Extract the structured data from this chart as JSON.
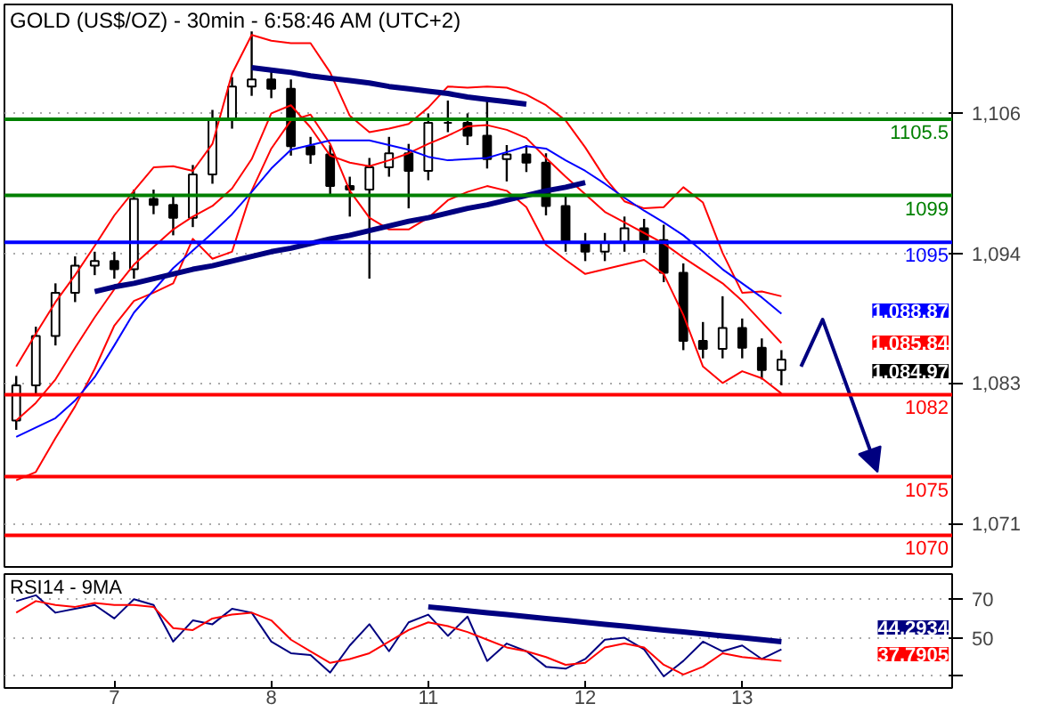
{
  "chart_data": [
    {
      "type": "candlestick",
      "title": "GOLD (US$/OZ) - 30min - 6:58:46 AM (UTC+2)",
      "categories": [
        null,
        null,
        null,
        null,
        null,
        null,
        null,
        null,
        null,
        null,
        null,
        null,
        null,
        null,
        null,
        null,
        null,
        null,
        null,
        null,
        null,
        null,
        null,
        null,
        null,
        null,
        null,
        null,
        null,
        null,
        null,
        null,
        null,
        null,
        null,
        null,
        null,
        null,
        null,
        null
      ],
      "ohlc": [
        [
          1079.8,
          1083.6,
          1079.0,
          1082.8
        ],
        [
          1082.8,
          1087.8,
          1082.0,
          1087.0
        ],
        [
          1087.0,
          1091.5,
          1086.2,
          1090.7
        ],
        [
          1090.7,
          1093.8,
          1089.9,
          1093.0
        ],
        [
          1093.0,
          1094.2,
          1092.2,
          1093.4
        ],
        [
          1093.4,
          1094.2,
          1091.9,
          1092.7
        ],
        [
          1092.7,
          1099.5,
          1091.9,
          1098.7
        ],
        [
          1098.7,
          1099.5,
          1097.4,
          1098.2
        ],
        [
          1098.2,
          1099.0,
          1095.6,
          1097.1
        ],
        [
          1097.1,
          1101.6,
          1096.3,
          1100.8
        ],
        [
          1100.8,
          1106.3,
          1100.0,
          1105.5
        ],
        [
          1105.5,
          1109.1,
          1104.7,
          1108.3
        ],
        [
          1108.3,
          1113.0,
          1107.5,
          1108.9
        ],
        [
          1108.9,
          1109.7,
          1107.3,
          1108.1
        ],
        [
          1108.1,
          1108.9,
          1102.4,
          1103.2
        ],
        [
          1103.2,
          1104.0,
          1101.7,
          1102.5
        ],
        [
          1102.5,
          1103.3,
          1099.0,
          1099.8
        ],
        [
          1099.8,
          1100.6,
          1097.2,
          1099.5
        ],
        [
          1099.5,
          1102.2,
          1091.9,
          1101.4
        ],
        [
          1101.4,
          1104.0,
          1100.6,
          1102.6
        ],
        [
          1102.6,
          1103.4,
          1097.9,
          1101.1
        ],
        [
          1101.1,
          1106.0,
          1100.3,
          1105.2
        ],
        [
          1105.2,
          1107.1,
          1104.4,
          1105.2
        ],
        [
          1105.2,
          1106.0,
          1103.3,
          1104.1
        ],
        [
          1104.1,
          1107.1,
          1101.3,
          1102.1
        ],
        [
          1102.1,
          1103.3,
          1100.2,
          1102.5
        ],
        [
          1102.5,
          1103.3,
          1101.0,
          1101.8
        ],
        [
          1101.8,
          1102.6,
          1097.3,
          1098.1
        ],
        [
          1098.1,
          1098.9,
          1094.2,
          1095.0
        ],
        [
          1095.0,
          1095.8,
          1093.4,
          1094.2
        ],
        [
          1094.2,
          1095.8,
          1093.4,
          1095.0
        ],
        [
          1095.0,
          1097.2,
          1094.2,
          1096.2
        ],
        [
          1096.2,
          1097.0,
          1094.1,
          1095.2
        ],
        [
          1095.2,
          1096.5,
          1091.6,
          1092.4
        ],
        [
          1092.4,
          1093.2,
          1085.8,
          1086.6
        ],
        [
          1086.6,
          1088.2,
          1085.1,
          1085.9
        ],
        [
          1085.9,
          1090.4,
          1085.1,
          1087.7
        ],
        [
          1087.7,
          1088.5,
          1085.1,
          1086.0
        ],
        [
          1086.0,
          1086.8,
          1083.3,
          1084.1
        ],
        [
          1084.1,
          1085.8,
          1082.8,
          1085.0
        ]
      ],
      "series": [
        {
          "type": "line",
          "color": "#ff0000",
          "values": [
            1084.4,
            1087.2,
            1089.9,
            1092.2,
            1094.7,
            1097.3,
            1099.4,
            1101.4,
            1101.5,
            1101.1,
            1103.4,
            1109.4,
            1112.7,
            1112.2,
            1112.0,
            1112.0,
            1109.5,
            1105.8,
            1104.4,
            1104.7,
            1105.1,
            1106.5,
            1108.3,
            1108.2,
            1108.3,
            1108.2,
            1107.6,
            1106.7,
            1105.4,
            1103.1,
            1100.5,
            1098.5,
            1097.9,
            1098.0,
            1099.7,
            1098.4,
            1094.1,
            1090.7,
            1090.8,
            1090.4
          ]
        },
        {
          "type": "line",
          "color": "#ff0000",
          "values": [
            1074.7,
            1075.4,
            1078.3,
            1081.0,
            1084.2,
            1087.9,
            1090.0,
            1090.7,
            1091.5,
            1095.3,
            1093.6,
            1094.2,
            1099.4,
            1103.0,
            1105.4,
            1105.9,
            1103.4,
            1099.4,
            1097.1,
            1096.1,
            1096.1,
            1097.1,
            1098.6,
            1099.3,
            1099.8,
            1099.4,
            1098.0,
            1094.8,
            1093.5,
            1092.3,
            1092.7,
            1093.1,
            1093.5,
            1092.3,
            1088.8,
            1084.4,
            1083.0,
            1084.0,
            1083.4,
            1082.1
          ]
        },
        {
          "type": "line",
          "color": "#ff0000",
          "values": [
            1079.8,
            1081.3,
            1083.3,
            1086.0,
            1088.6,
            1091.0,
            1093.1,
            1094.6,
            1096.1,
            1097.2,
            1098.1,
            1099.6,
            1102.1,
            1106.0,
            1106.7,
            1104.8,
            1102.4,
            1101.8,
            1101.5,
            1102.0,
            1102.6,
            1103.4,
            1104.1,
            1104.9,
            1105.0,
            1104.6,
            1103.9,
            1102.2,
            1100.6,
            1099.1,
            1097.6,
            1096.7,
            1095.8,
            1094.9,
            1093.7,
            1092.6,
            1091.5,
            1090.0,
            1088.2,
            1086.4
          ]
        },
        {
          "type": "line",
          "color": "#0000ff",
          "values": [
            1078.4,
            1079.2,
            1080.0,
            1081.5,
            1083.5,
            1086.2,
            1089.0,
            1090.9,
            1092.8,
            1094.3,
            1095.8,
            1097.4,
            1099.3,
            1101.3,
            1102.9,
            1103.3,
            1103.7,
            1103.7,
            1103.7,
            1103.3,
            1102.9,
            1102.3,
            1102.0,
            1102.1,
            1102.2,
            1102.7,
            1103.2,
            1103.0,
            1102.0,
            1101.1,
            1100.0,
            1098.8,
            1097.7,
            1096.7,
            1095.6,
            1094.2,
            1092.7,
            1091.5,
            1090.3,
            1088.9
          ]
        },
        {
          "type": "line",
          "color": "#000080",
          "values": [
            null,
            null,
            null,
            null,
            null,
            null,
            null,
            null,
            null,
            null,
            null,
            null,
            1109.9,
            1109.7,
            1109.5,
            1109.2,
            1109.0,
            1108.8,
            1108.6,
            1108.3,
            1108.1,
            1107.9,
            1107.7,
            1107.4,
            1107.2,
            1107.0,
            1106.8,
            null,
            null,
            null,
            null,
            null,
            null,
            null,
            null,
            null,
            null,
            null,
            null,
            null
          ]
        },
        {
          "type": "line",
          "color": "#000080",
          "values": [
            null,
            null,
            null,
            null,
            1090.8,
            1091.2,
            1091.5,
            1091.9,
            1092.3,
            1092.7,
            1093.0,
            1093.4,
            1093.8,
            1094.2,
            1094.5,
            1094.9,
            1095.3,
            1095.6,
            1096.0,
            1096.4,
            1096.8,
            1097.1,
            1097.5,
            1097.9,
            1098.2,
            1098.6,
            1099.0,
            1099.4,
            1099.7,
            1100.1,
            null,
            null,
            null,
            null,
            null,
            null,
            null,
            null,
            null,
            null
          ]
        }
      ],
      "ylim": [
        1067.3,
        1115.3
      ],
      "yticks": [
        {
          "value": 1106,
          "label": "1,106"
        },
        {
          "value": 1094,
          "label": "1,094"
        },
        {
          "value": 1083,
          "label": "1,083"
        },
        {
          "value": 1071,
          "label": "1,071"
        }
      ],
      "tick_labels": "y",
      "grid": "y",
      "ref_lines": [
        {
          "axis": "y",
          "value": 1105.5,
          "label": "1105.5",
          "color": "#008000"
        },
        {
          "axis": "y",
          "value": 1099,
          "label": "1099",
          "color": "#008000"
        },
        {
          "axis": "y",
          "value": 1095,
          "label": "1095",
          "color": "#0000ff"
        },
        {
          "axis": "y",
          "value": 1082,
          "label": "1082",
          "color": "#ff0000"
        },
        {
          "axis": "y",
          "value": 1075,
          "label": "1075",
          "color": "#ff0000"
        },
        {
          "axis": "y",
          "value": 1070,
          "label": "1070",
          "color": "#ff0000"
        }
      ],
      "annotations": [
        "1,088.87",
        "1,085.84",
        "1,084.97"
      ]
    },
    {
      "type": "line",
      "title": "RSI14 - 9MA",
      "categories": [
        null,
        null,
        null,
        null,
        null,
        "7",
        null,
        null,
        null,
        null,
        null,
        null,
        null,
        "8",
        null,
        null,
        null,
        null,
        null,
        null,
        null,
        "11",
        null,
        null,
        null,
        null,
        null,
        null,
        null,
        "12",
        null,
        null,
        null,
        null,
        null,
        null,
        null,
        "13",
        null,
        null
      ],
      "series": [
        {
          "color": "#000080",
          "values": [
            69,
            72,
            63,
            65,
            67,
            60,
            70,
            67,
            48,
            59,
            57,
            65,
            63,
            48,
            42,
            41,
            32,
            46,
            57,
            43,
            58,
            62,
            51,
            61,
            38,
            47,
            43,
            35,
            34,
            39,
            49,
            50,
            44,
            30,
            38,
            48,
            43,
            46,
            39,
            44
          ]
        },
        {
          "color": "#ff0000",
          "values": [
            63,
            69,
            67,
            66,
            68,
            67,
            67,
            66,
            55,
            54,
            60,
            62,
            63,
            59,
            49,
            43,
            37,
            39,
            42,
            48,
            54,
            58,
            56,
            53,
            49,
            45,
            43,
            40,
            36,
            37,
            45,
            47,
            45,
            36,
            31,
            35,
            42,
            40,
            39,
            38
          ]
        },
        {
          "color": "#000080",
          "values": [
            null,
            null,
            null,
            null,
            null,
            null,
            null,
            null,
            null,
            null,
            null,
            null,
            null,
            null,
            null,
            null,
            null,
            null,
            null,
            null,
            null,
            66,
            65,
            64,
            63,
            62,
            61,
            60,
            59,
            58,
            57,
            56,
            55,
            54,
            53,
            52,
            51,
            50,
            49,
            48
          ]
        }
      ],
      "ylim": [
        24,
        83
      ],
      "yticks": [
        70,
        50,
        {
          "value": 30,
          "label": null
        }
      ],
      "grid": "y",
      "annotations": [
        "44.2934",
        "37.7905"
      ]
    }
  ]
}
